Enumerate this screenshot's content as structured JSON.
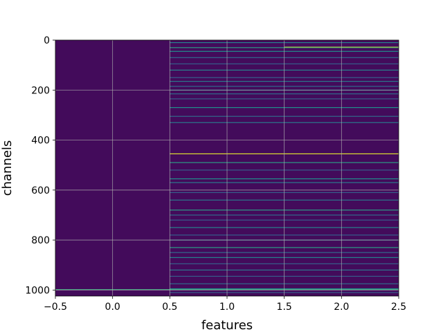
{
  "chart_data": {
    "type": "heatmap",
    "title": "",
    "xlabel": "features",
    "ylabel": "channels",
    "xlim": [
      -0.5,
      2.5
    ],
    "ylim": [
      1024,
      0
    ],
    "y_inverted": true,
    "grid": true,
    "colormap": "viridis",
    "x_ticks": [
      -0.5,
      0.0,
      0.5,
      1.0,
      1.5,
      2.0,
      2.5
    ],
    "x_tick_labels": [
      "−0.5",
      "0.0",
      "0.5",
      "1.0",
      "1.5",
      "2.0",
      "2.5"
    ],
    "y_ticks": [
      0,
      200,
      400,
      600,
      800,
      1000
    ],
    "y_tick_labels": [
      "0",
      "200",
      "400",
      "600",
      "800",
      "1000"
    ],
    "rows": 1024,
    "columns": [
      0,
      1,
      2
    ],
    "background_value": 0.03,
    "column0_rows": [
      {
        "row": 998,
        "value": 0.6
      }
    ],
    "column12_rows": [
      {
        "row": 10,
        "value": 0.45
      },
      {
        "row": 30,
        "value": 0.55
      },
      {
        "row": 45,
        "value": 0.5
      },
      {
        "row": 70,
        "value": 0.35
      },
      {
        "row": 95,
        "value": 0.3
      },
      {
        "row": 120,
        "value": 0.45
      },
      {
        "row": 150,
        "value": 0.3
      },
      {
        "row": 165,
        "value": 0.4
      },
      {
        "row": 185,
        "value": 0.35
      },
      {
        "row": 200,
        "value": 0.4
      },
      {
        "row": 215,
        "value": 0.35
      },
      {
        "row": 235,
        "value": 0.3
      },
      {
        "row": 270,
        "value": 0.5
      },
      {
        "row": 305,
        "value": 0.35
      },
      {
        "row": 330,
        "value": 0.4
      },
      {
        "row": 455,
        "value": 0.95
      },
      {
        "row": 490,
        "value": 0.55
      },
      {
        "row": 520,
        "value": 0.3
      },
      {
        "row": 555,
        "value": 0.5
      },
      {
        "row": 570,
        "value": 0.4
      },
      {
        "row": 610,
        "value": 0.3
      },
      {
        "row": 640,
        "value": 0.4
      },
      {
        "row": 680,
        "value": 0.55
      },
      {
        "row": 700,
        "value": 0.35
      },
      {
        "row": 720,
        "value": 0.3
      },
      {
        "row": 750,
        "value": 0.45
      },
      {
        "row": 780,
        "value": 0.3
      },
      {
        "row": 800,
        "value": 0.45
      },
      {
        "row": 830,
        "value": 0.55
      },
      {
        "row": 850,
        "value": 0.35
      },
      {
        "row": 870,
        "value": 0.45
      },
      {
        "row": 895,
        "value": 0.3
      },
      {
        "row": 920,
        "value": 0.4
      },
      {
        "row": 945,
        "value": 0.3
      },
      {
        "row": 975,
        "value": 0.35
      },
      {
        "row": 995,
        "value": 0.5
      },
      {
        "row": 1010,
        "value": 0.3
      }
    ],
    "column2_only_rows": [
      {
        "row": 28,
        "value": 0.85
      }
    ]
  }
}
